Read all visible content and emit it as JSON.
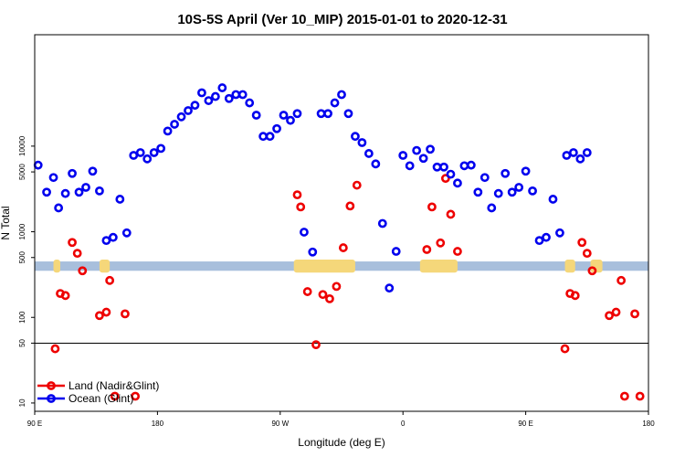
{
  "chart_data": {
    "type": "scatter",
    "title": "10S-5S April (Ver 10_MIP)   2015-01-01 to 2020-12-31",
    "xlabel": "Longitude (deg E)",
    "ylabel": "N Total",
    "xlim": [
      90,
      450
    ],
    "ylim_log": [
      8,
      200000
    ],
    "yscale": "log",
    "x_ticks": [
      {
        "value": 90,
        "label": "90 E"
      },
      {
        "value": 162,
        "label": "180"
      },
      {
        "value": 234,
        "label": "90 W"
      },
      {
        "value": 306,
        "label": "0"
      },
      {
        "value": 378,
        "label": "90 E"
      },
      {
        "value": 450,
        "label": "180"
      }
    ],
    "y_ticks": [
      {
        "value": 10,
        "label": "10"
      },
      {
        "value": 50,
        "label": "50"
      },
      {
        "value": 100,
        "label": "100"
      },
      {
        "value": 500,
        "label": "500"
      },
      {
        "value": 1000,
        "label": "1000"
      },
      {
        "value": 5000,
        "label": "5000"
      },
      {
        "value": 10000,
        "label": "10000"
      }
    ],
    "reference_line": 50,
    "band": {
      "ymin": 350,
      "ymax": 450,
      "color": "#a8bfdc",
      "land_color": "#f5d77a"
    },
    "land_spans": [
      [
        101,
        105
      ],
      [
        128,
        134
      ],
      [
        242,
        278
      ],
      [
        316,
        338
      ],
      [
        401,
        407
      ],
      [
        416,
        423
      ]
    ],
    "series": [
      {
        "name": "Land (Nadir&Glint)",
        "color": "#ee0000",
        "points": [
          [
            102,
            43
          ],
          [
            105,
            190
          ],
          [
            108,
            180
          ],
          [
            112,
            750
          ],
          [
            115,
            560
          ],
          [
            118,
            350
          ],
          [
            128,
            105
          ],
          [
            132,
            115
          ],
          [
            134,
            270
          ],
          [
            137,
            12
          ],
          [
            143,
            110
          ],
          [
            149,
            12
          ],
          [
            244,
            2700
          ],
          [
            246,
            1950
          ],
          [
            250,
            200
          ],
          [
            255,
            48
          ],
          [
            259,
            185
          ],
          [
            263,
            165
          ],
          [
            267,
            230
          ],
          [
            271,
            650
          ],
          [
            275,
            2000
          ],
          [
            279,
            3500
          ],
          [
            320,
            620
          ],
          [
            323,
            1950
          ],
          [
            328,
            740
          ],
          [
            331,
            4200
          ],
          [
            334,
            1600
          ],
          [
            338,
            590
          ],
          [
            401,
            43
          ],
          [
            404,
            190
          ],
          [
            407,
            180
          ],
          [
            411,
            750
          ],
          [
            414,
            560
          ],
          [
            417,
            350
          ],
          [
            427,
            105
          ],
          [
            431,
            115
          ],
          [
            434,
            270
          ],
          [
            436,
            12
          ],
          [
            442,
            110
          ],
          [
            445,
            12
          ]
        ]
      },
      {
        "name": "Ocean (Glint)",
        "color": "#0000ee",
        "points": [
          [
            92,
            6000
          ],
          [
            97,
            2900
          ],
          [
            101,
            4300
          ],
          [
            104,
            1900
          ],
          [
            108,
            2800
          ],
          [
            112,
            4800
          ],
          [
            116,
            2900
          ],
          [
            120,
            3300
          ],
          [
            124,
            5100
          ],
          [
            128,
            3000
          ],
          [
            132,
            790
          ],
          [
            136,
            860
          ],
          [
            140,
            2400
          ],
          [
            144,
            970
          ],
          [
            148,
            7800
          ],
          [
            152,
            8400
          ],
          [
            156,
            7100
          ],
          [
            160,
            8400
          ],
          [
            164,
            9400
          ],
          [
            168,
            15000
          ],
          [
            172,
            18000
          ],
          [
            176,
            22000
          ],
          [
            180,
            26000
          ],
          [
            184,
            30000
          ],
          [
            188,
            42000
          ],
          [
            192,
            34000
          ],
          [
            196,
            38000
          ],
          [
            200,
            48000
          ],
          [
            204,
            36000
          ],
          [
            208,
            40000
          ],
          [
            212,
            40000
          ],
          [
            216,
            32000
          ],
          [
            220,
            23000
          ],
          [
            224,
            13000
          ],
          [
            228,
            13000
          ],
          [
            232,
            16000
          ],
          [
            236,
            23000
          ],
          [
            240,
            20000
          ],
          [
            244,
            24000
          ],
          [
            248,
            990
          ],
          [
            253,
            580
          ],
          [
            258,
            24000
          ],
          [
            262,
            24000
          ],
          [
            266,
            32000
          ],
          [
            270,
            40000
          ],
          [
            274,
            24000
          ],
          [
            278,
            13000
          ],
          [
            282,
            11000
          ],
          [
            286,
            8200
          ],
          [
            290,
            6200
          ],
          [
            294,
            1250
          ],
          [
            298,
            220
          ],
          [
            302,
            590
          ],
          [
            306,
            7800
          ],
          [
            310,
            5900
          ],
          [
            314,
            8900
          ],
          [
            318,
            7200
          ],
          [
            322,
            9200
          ],
          [
            326,
            5700
          ],
          [
            330,
            5700
          ],
          [
            334,
            4700
          ],
          [
            338,
            3700
          ],
          [
            342,
            5900
          ],
          [
            346,
            6000
          ],
          [
            350,
            2900
          ],
          [
            354,
            4300
          ],
          [
            358,
            1900
          ],
          [
            362,
            2800
          ],
          [
            366,
            4800
          ],
          [
            370,
            2900
          ],
          [
            374,
            3300
          ],
          [
            378,
            5100
          ],
          [
            382,
            3000
          ],
          [
            386,
            790
          ],
          [
            390,
            860
          ],
          [
            394,
            2400
          ],
          [
            398,
            970
          ],
          [
            402,
            7800
          ],
          [
            406,
            8400
          ],
          [
            410,
            7100
          ],
          [
            414,
            8400
          ]
        ]
      }
    ],
    "legend": {
      "position": "bottom-left",
      "entries": [
        {
          "label": "Land (Nadir&Glint)",
          "color": "#ee0000"
        },
        {
          "label": "Ocean (Glint)",
          "color": "#0000ee"
        }
      ]
    }
  }
}
